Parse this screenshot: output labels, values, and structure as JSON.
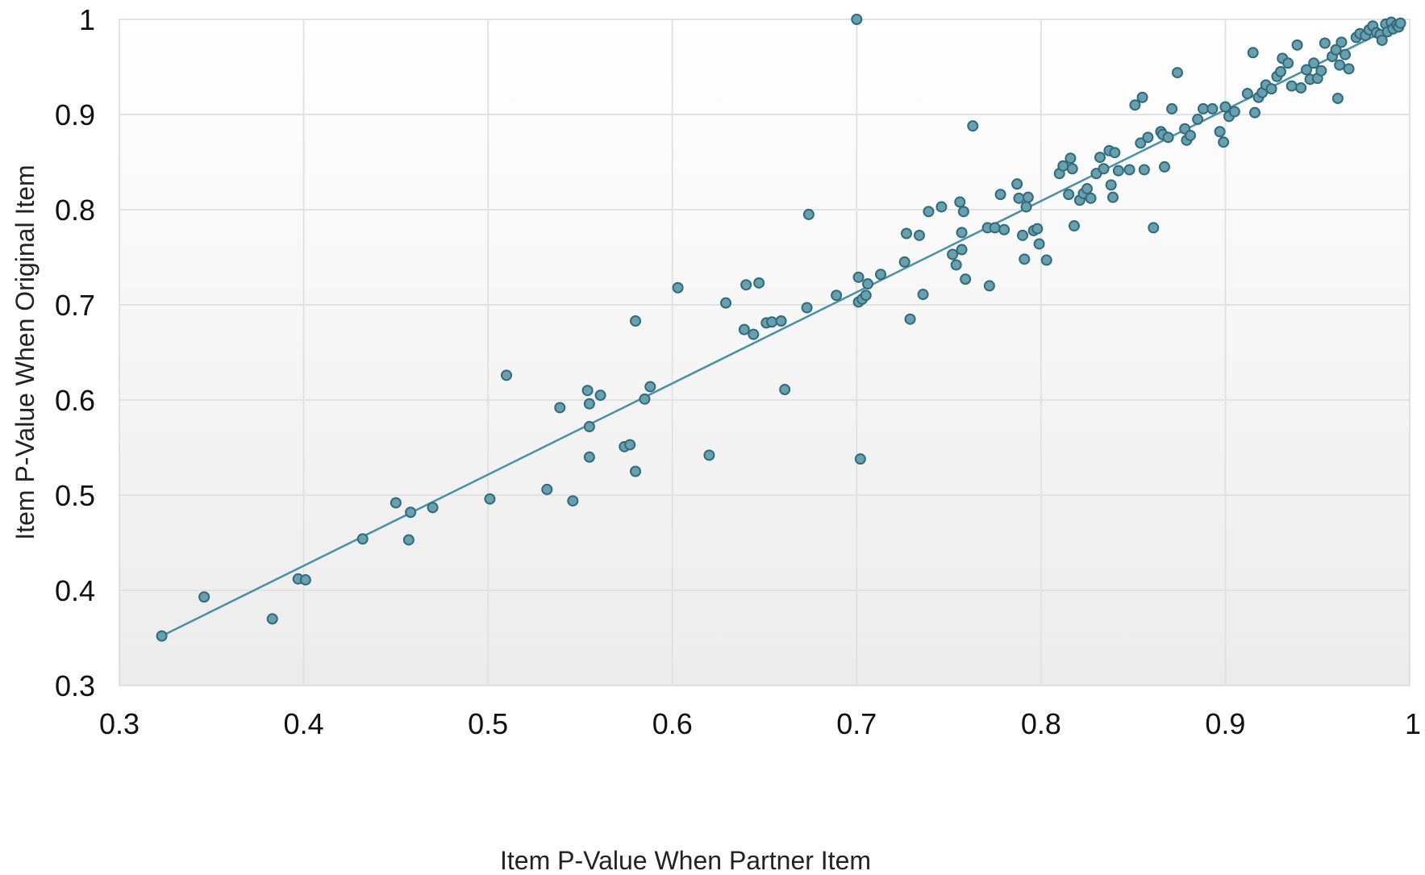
{
  "chart_data": {
    "type": "scatter",
    "title": "",
    "xlabel": "Item P-Value When Partner Item",
    "ylabel": "Item P-Value When Original Item",
    "xlim": [
      0.3,
      1
    ],
    "ylim": [
      0.3,
      1
    ],
    "x_ticks": [
      "0.3",
      "0.4",
      "0.5",
      "0.6",
      "0.7",
      "0.8",
      "0.9",
      "1"
    ],
    "y_ticks": [
      "0.3",
      "0.4",
      "0.5",
      "0.6",
      "0.7",
      "0.8",
      "0.9",
      "1"
    ],
    "grid": true,
    "legend": "none",
    "marker_color": "#6a9fae",
    "marker_edge_color": "#2f6b7c",
    "trendline": {
      "type": "linear",
      "x": [
        0.323,
        0.995
      ],
      "y": [
        0.352,
        0.996
      ],
      "color": "#4a90a4"
    },
    "points": [
      [
        0.323,
        0.352
      ],
      [
        0.346,
        0.393
      ],
      [
        0.383,
        0.37
      ],
      [
        0.397,
        0.412
      ],
      [
        0.401,
        0.411
      ],
      [
        0.432,
        0.454
      ],
      [
        0.45,
        0.492
      ],
      [
        0.457,
        0.453
      ],
      [
        0.458,
        0.482
      ],
      [
        0.47,
        0.487
      ],
      [
        0.501,
        0.496
      ],
      [
        0.51,
        0.626
      ],
      [
        0.532,
        0.506
      ],
      [
        0.539,
        0.592
      ],
      [
        0.546,
        0.494
      ],
      [
        0.554,
        0.61
      ],
      [
        0.555,
        0.596
      ],
      [
        0.555,
        0.572
      ],
      [
        0.555,
        0.54
      ],
      [
        0.561,
        0.605
      ],
      [
        0.574,
        0.551
      ],
      [
        0.577,
        0.553
      ],
      [
        0.58,
        0.683
      ],
      [
        0.58,
        0.525
      ],
      [
        0.585,
        0.601
      ],
      [
        0.588,
        0.614
      ],
      [
        0.603,
        0.718
      ],
      [
        0.62,
        0.542
      ],
      [
        0.629,
        0.702
      ],
      [
        0.639,
        0.674
      ],
      [
        0.64,
        0.721
      ],
      [
        0.644,
        0.669
      ],
      [
        0.647,
        0.723
      ],
      [
        0.651,
        0.681
      ],
      [
        0.654,
        0.682
      ],
      [
        0.659,
        0.683
      ],
      [
        0.661,
        0.611
      ],
      [
        0.673,
        0.697
      ],
      [
        0.674,
        0.795
      ],
      [
        0.689,
        0.71
      ],
      [
        0.7,
        1.0
      ],
      [
        0.701,
        0.729
      ],
      [
        0.701,
        0.703
      ],
      [
        0.702,
        0.538
      ],
      [
        0.703,
        0.706
      ],
      [
        0.705,
        0.71
      ],
      [
        0.706,
        0.722
      ],
      [
        0.713,
        0.732
      ],
      [
        0.726,
        0.745
      ],
      [
        0.727,
        0.775
      ],
      [
        0.729,
        0.685
      ],
      [
        0.734,
        0.773
      ],
      [
        0.736,
        0.711
      ],
      [
        0.739,
        0.798
      ],
      [
        0.746,
        0.803
      ],
      [
        0.752,
        0.753
      ],
      [
        0.754,
        0.742
      ],
      [
        0.756,
        0.808
      ],
      [
        0.757,
        0.758
      ],
      [
        0.757,
        0.776
      ],
      [
        0.758,
        0.798
      ],
      [
        0.759,
        0.727
      ],
      [
        0.763,
        0.888
      ],
      [
        0.771,
        0.781
      ],
      [
        0.772,
        0.72
      ],
      [
        0.775,
        0.781
      ],
      [
        0.778,
        0.816
      ],
      [
        0.78,
        0.779
      ],
      [
        0.787,
        0.827
      ],
      [
        0.788,
        0.812
      ],
      [
        0.79,
        0.773
      ],
      [
        0.791,
        0.748
      ],
      [
        0.792,
        0.803
      ],
      [
        0.793,
        0.813
      ],
      [
        0.796,
        0.778
      ],
      [
        0.798,
        0.78
      ],
      [
        0.799,
        0.764
      ],
      [
        0.803,
        0.747
      ],
      [
        0.81,
        0.838
      ],
      [
        0.812,
        0.846
      ],
      [
        0.815,
        0.816
      ],
      [
        0.816,
        0.854
      ],
      [
        0.817,
        0.843
      ],
      [
        0.818,
        0.783
      ],
      [
        0.821,
        0.81
      ],
      [
        0.823,
        0.817
      ],
      [
        0.825,
        0.822
      ],
      [
        0.827,
        0.812
      ],
      [
        0.83,
        0.838
      ],
      [
        0.832,
        0.855
      ],
      [
        0.834,
        0.843
      ],
      [
        0.837,
        0.862
      ],
      [
        0.838,
        0.826
      ],
      [
        0.839,
        0.813
      ],
      [
        0.84,
        0.86
      ],
      [
        0.842,
        0.841
      ],
      [
        0.848,
        0.842
      ],
      [
        0.851,
        0.91
      ],
      [
        0.854,
        0.87
      ],
      [
        0.855,
        0.918
      ],
      [
        0.856,
        0.842
      ],
      [
        0.858,
        0.876
      ],
      [
        0.861,
        0.781
      ],
      [
        0.865,
        0.882
      ],
      [
        0.866,
        0.879
      ],
      [
        0.867,
        0.845
      ],
      [
        0.869,
        0.876
      ],
      [
        0.871,
        0.906
      ],
      [
        0.874,
        0.944
      ],
      [
        0.878,
        0.885
      ],
      [
        0.879,
        0.873
      ],
      [
        0.881,
        0.878
      ],
      [
        0.885,
        0.895
      ],
      [
        0.888,
        0.906
      ],
      [
        0.893,
        0.906
      ],
      [
        0.897,
        0.882
      ],
      [
        0.899,
        0.871
      ],
      [
        0.9,
        0.908
      ],
      [
        0.902,
        0.898
      ],
      [
        0.905,
        0.903
      ],
      [
        0.912,
        0.922
      ],
      [
        0.915,
        0.965
      ],
      [
        0.916,
        0.902
      ],
      [
        0.918,
        0.918
      ],
      [
        0.92,
        0.923
      ],
      [
        0.922,
        0.931
      ],
      [
        0.925,
        0.927
      ],
      [
        0.928,
        0.94
      ],
      [
        0.93,
        0.945
      ],
      [
        0.931,
        0.959
      ],
      [
        0.934,
        0.954
      ],
      [
        0.936,
        0.93
      ],
      [
        0.939,
        0.973
      ],
      [
        0.941,
        0.928
      ],
      [
        0.944,
        0.947
      ],
      [
        0.946,
        0.937
      ],
      [
        0.948,
        0.954
      ],
      [
        0.95,
        0.938
      ],
      [
        0.952,
        0.946
      ],
      [
        0.954,
        0.975
      ],
      [
        0.958,
        0.961
      ],
      [
        0.96,
        0.968
      ],
      [
        0.961,
        0.917
      ],
      [
        0.962,
        0.952
      ],
      [
        0.963,
        0.976
      ],
      [
        0.965,
        0.963
      ],
      [
        0.967,
        0.948
      ],
      [
        0.971,
        0.981
      ],
      [
        0.973,
        0.985
      ],
      [
        0.976,
        0.983
      ],
      [
        0.978,
        0.989
      ],
      [
        0.98,
        0.993
      ],
      [
        0.982,
        0.986
      ],
      [
        0.984,
        0.984
      ],
      [
        0.985,
        0.978
      ],
      [
        0.987,
        0.995
      ],
      [
        0.988,
        0.987
      ],
      [
        0.99,
        0.997
      ],
      [
        0.991,
        0.99
      ],
      [
        0.993,
        0.994
      ],
      [
        0.994,
        0.992
      ],
      [
        0.995,
        0.996
      ]
    ]
  }
}
